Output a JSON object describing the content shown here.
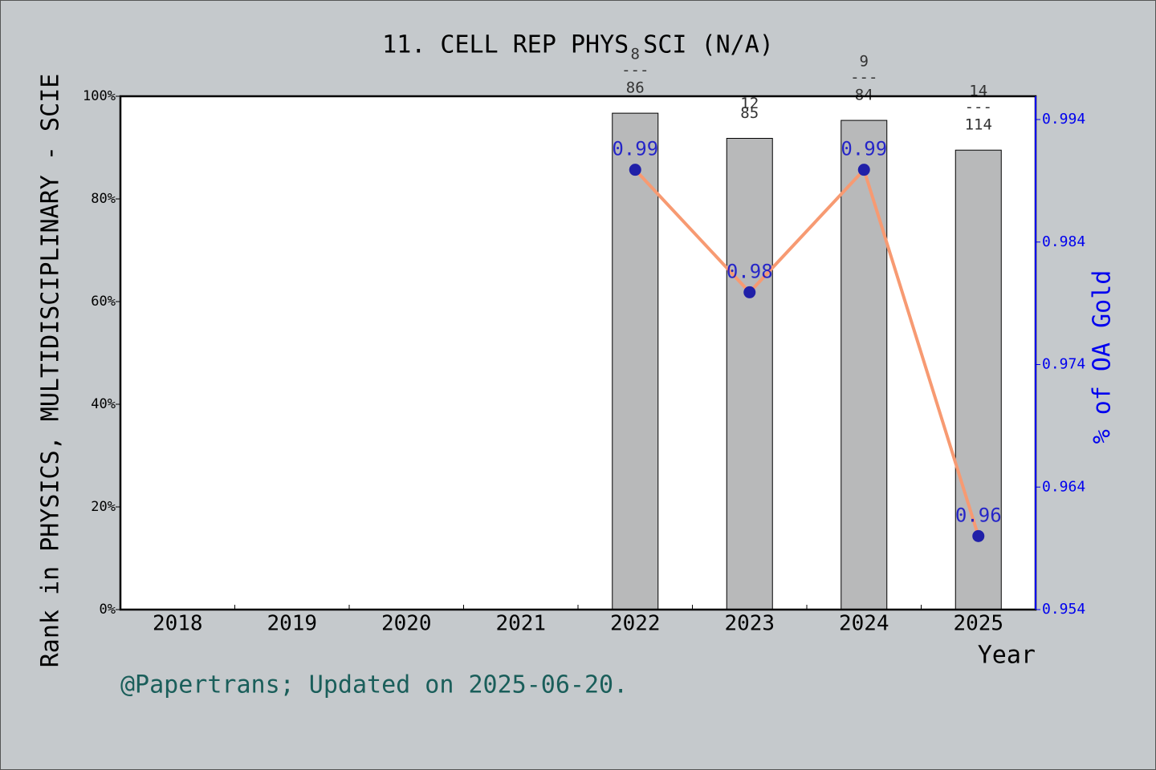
{
  "chart_data": {
    "type": "bar",
    "title": "11. CELL REP PHYS SCI (N/A)",
    "xlabel": "Year",
    "ylabel": "Rank in PHYSICS, MULTIDISCIPLINARY - SCIE",
    "y2label": "% of OA Gold",
    "footer": "@Papertrans; Updated on 2025-06-20.",
    "categories": [
      "2018",
      "2019",
      "2020",
      "2021",
      "2022",
      "2023",
      "2024",
      "2025"
    ],
    "values": [
      null,
      null,
      null,
      null,
      96.7,
      91.8,
      95.3,
      89.5
    ],
    "color": "#b8b9ba",
    "rank_labels": [
      null,
      null,
      null,
      null,
      [
        "8",
        "---",
        "86"
      ],
      [
        "12",
        "85"
      ],
      [
        "9",
        "---",
        "84"
      ],
      [
        "14",
        "---",
        "114"
      ]
    ],
    "line": {
      "type": "line",
      "axis": "y2",
      "color": "#f79a72",
      "marker_color": "#2020a8",
      "label_color": "#0000cc",
      "values": [
        null,
        null,
        null,
        null,
        0.9899,
        0.9799,
        0.9899,
        0.96
      ],
      "value_labels": [
        null,
        null,
        null,
        null,
        "0.99",
        "0.98",
        "0.99",
        "0.96"
      ]
    },
    "ylim": [
      0,
      100
    ],
    "yticks": [
      {
        "value": 0,
        "label": "0%"
      },
      {
        "value": 20,
        "label": "20%"
      },
      {
        "value": 40,
        "label": "40%"
      },
      {
        "value": 60,
        "label": "60%"
      },
      {
        "value": 80,
        "label": "80%"
      },
      {
        "value": 100,
        "label": "100%"
      }
    ],
    "y2lim": [
      0.954,
      0.9959
    ],
    "y2ticks": [
      0.954,
      0.964,
      0.974,
      0.984,
      0.994
    ],
    "y2color": "#0000ee"
  }
}
